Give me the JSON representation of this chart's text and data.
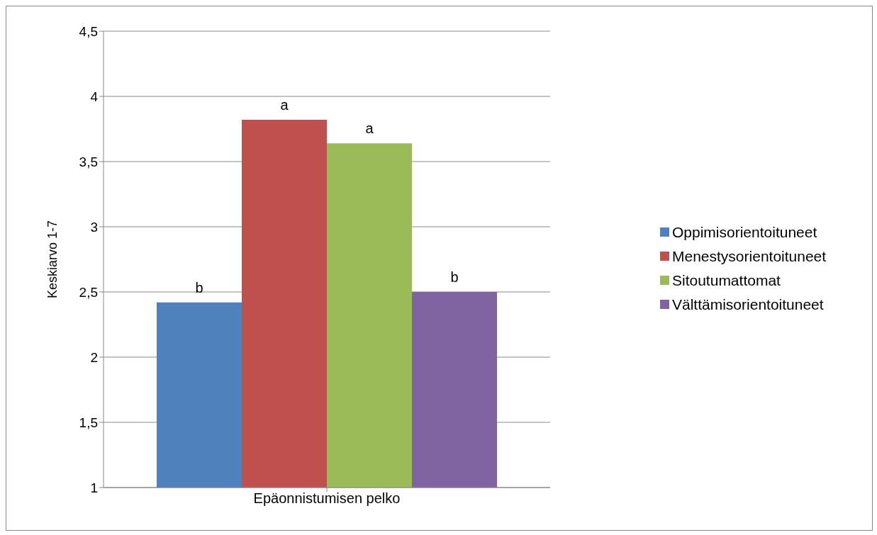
{
  "chart_data": {
    "type": "bar",
    "ylabel": "Keskiarvo 1-7",
    "categories": [
      "Epäonnistumisen pelko"
    ],
    "series": [
      {
        "name": "Oppimisorientoituneet",
        "color": "#4f81bd",
        "values": [
          2.42
        ]
      },
      {
        "name": "Menestysorientoituneet",
        "color": "#c0504d",
        "values": [
          3.82
        ]
      },
      {
        "name": "Sitoutumattomat",
        "color": "#9bbb59",
        "values": [
          3.64
        ]
      },
      {
        "name": "Välttämisorientoituneet",
        "color": "#8064a2",
        "values": [
          2.5
        ]
      }
    ],
    "annotations": [
      "b",
      "a",
      "a",
      "b"
    ],
    "ylim": [
      1,
      4.5
    ],
    "yticks": [
      1,
      {
        "value": 1.5,
        "label": "1,5"
      },
      2,
      {
        "value": 2.5,
        "label": "2,5"
      },
      3,
      {
        "value": 3.5,
        "label": "3,5"
      },
      4,
      {
        "value": 4.5,
        "label": "4,5"
      }
    ],
    "grid": "y",
    "legend": "right"
  }
}
